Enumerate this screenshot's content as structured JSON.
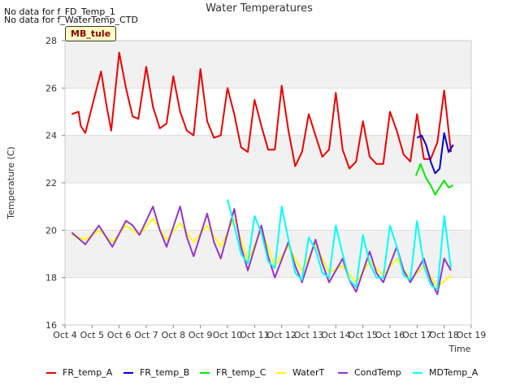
{
  "notices": [
    "No data for f_FD_Temp_1",
    "No data for f_WaterTemp_CTD"
  ],
  "site_label": "MB_tule",
  "chart_data": {
    "type": "line",
    "title": "Water Temperatures",
    "xlabel": "Time",
    "ylabel": "Temperature (C)",
    "ylim": [
      16,
      28
    ],
    "yticks": [
      16,
      18,
      20,
      22,
      24,
      26,
      28
    ],
    "xlim": [
      "Oct 4",
      "Oct 19"
    ],
    "xticks": [
      "Oct 4",
      "Oct 5",
      "Oct 6",
      "Oct 7",
      "Oct 8",
      "Oct 9",
      "Oct 10",
      "Oct 11",
      "Oct 12",
      "Oct 13",
      "Oct 14",
      "Oct 15",
      "Oct 16",
      "Oct 17",
      "Oct 18",
      "Oct 19"
    ],
    "grid": "horizontal bands",
    "legend_position": "bottom",
    "series": [
      {
        "name": "FR_temp_A",
        "color": "#ee0000",
        "x": [
          "Oct 4 06:00",
          "Oct 4 12:00",
          "Oct 4 14:00",
          "Oct 4 18:00",
          "Oct 5 02:00",
          "Oct 5 08:00",
          "Oct 5 13:00",
          "Oct 5 17:00",
          "Oct 6 00:00",
          "Oct 6 06:00",
          "Oct 6 12:00",
          "Oct 6 17:00",
          "Oct 7 00:00",
          "Oct 7 06:00",
          "Oct 7 12:00",
          "Oct 7 18:00",
          "Oct 8 00:00",
          "Oct 8 06:00",
          "Oct 8 12:00",
          "Oct 8 18:00",
          "Oct 9 00:00",
          "Oct 9 06:00",
          "Oct 9 12:00",
          "Oct 9 18:00",
          "Oct 10 00:00",
          "Oct 10 06:00",
          "Oct 10 12:00",
          "Oct 10 18:00",
          "Oct 11 00:00",
          "Oct 11 06:00",
          "Oct 11 12:00",
          "Oct 11 18:00",
          "Oct 12 00:00",
          "Oct 12 06:00",
          "Oct 12 12:00",
          "Oct 12 18:00",
          "Oct 13 00:00",
          "Oct 13 06:00",
          "Oct 13 12:00",
          "Oct 13 18:00",
          "Oct 14 00:00",
          "Oct 14 06:00",
          "Oct 14 12:00",
          "Oct 14 18:00",
          "Oct 15 00:00",
          "Oct 15 06:00",
          "Oct 15 12:00",
          "Oct 15 18:00",
          "Oct 16 00:00",
          "Oct 16 06:00",
          "Oct 16 12:00",
          "Oct 16 18:00",
          "Oct 17 00:00",
          "Oct 17 06:00",
          "Oct 17 12:00",
          "Oct 17 18:00",
          "Oct 18 00:00",
          "Oct 18 06:00"
        ],
        "y": [
          24.9,
          25.0,
          24.4,
          24.1,
          25.6,
          26.7,
          25.2,
          24.2,
          27.5,
          26.0,
          24.8,
          24.7,
          26.9,
          25.2,
          24.3,
          24.5,
          26.5,
          25.0,
          24.2,
          24.0,
          26.8,
          24.6,
          23.9,
          24.0,
          26.0,
          24.9,
          23.5,
          23.3,
          25.5,
          24.4,
          23.4,
          23.4,
          26.1,
          24.2,
          22.7,
          23.3,
          24.9,
          24.0,
          23.1,
          23.4,
          25.8,
          23.4,
          22.6,
          22.9,
          24.6,
          23.1,
          22.8,
          22.8,
          25.0,
          24.2,
          23.2,
          22.9,
          24.9,
          23.0,
          23.0,
          23.7,
          25.9,
          23.3
        ]
      },
      {
        "name": "FR_temp_B",
        "color": "#0000cc",
        "x": [
          "Oct 17 00:00",
          "Oct 17 04:00",
          "Oct 17 08:00",
          "Oct 17 12:00",
          "Oct 17 16:00",
          "Oct 17 20:00",
          "Oct 18 00:00",
          "Oct 18 04:00",
          "Oct 18 08:00"
        ],
        "y": [
          23.9,
          24.0,
          23.6,
          22.9,
          22.4,
          22.6,
          24.1,
          23.3,
          23.6
        ]
      },
      {
        "name": "FR_temp_C",
        "color": "#00ee00",
        "x": [
          "Oct 16 23:00",
          "Oct 17 03:00",
          "Oct 17 08:00",
          "Oct 17 12:00",
          "Oct 17 16:00",
          "Oct 17 20:00",
          "Oct 18 00:00",
          "Oct 18 04:00",
          "Oct 18 08:00"
        ],
        "y": [
          22.3,
          22.8,
          22.2,
          21.9,
          21.5,
          21.8,
          22.1,
          21.8,
          21.9
        ]
      },
      {
        "name": "WaterT",
        "color": "#ffff00",
        "x": [
          "Oct 4 06:00",
          "Oct 4 18:00",
          "Oct 5 06:00",
          "Oct 5 18:00",
          "Oct 6 06:00",
          "Oct 6 18:00",
          "Oct 7 06:00",
          "Oct 7 18:00",
          "Oct 8 06:00",
          "Oct 8 18:00",
          "Oct 9 06:00",
          "Oct 9 18:00",
          "Oct 10 06:00",
          "Oct 10 18:00",
          "Oct 11 06:00",
          "Oct 11 18:00",
          "Oct 12 06:00",
          "Oct 12 18:00",
          "Oct 13 06:00",
          "Oct 13 18:00",
          "Oct 14 06:00",
          "Oct 14 18:00",
          "Oct 15 06:00",
          "Oct 15 18:00",
          "Oct 16 06:00",
          "Oct 16 18:00",
          "Oct 17 06:00",
          "Oct 17 18:00",
          "Oct 18 06:00"
        ],
        "y": [
          19.8,
          19.6,
          20.0,
          19.5,
          20.2,
          19.8,
          20.5,
          19.6,
          20.3,
          19.5,
          20.2,
          19.3,
          20.5,
          18.7,
          20.0,
          18.5,
          19.3,
          18.3,
          19.4,
          18.2,
          18.5,
          17.8,
          18.7,
          18.1,
          18.8,
          17.9,
          18.5,
          17.6,
          18.1
        ]
      },
      {
        "name": "CondTemp",
        "color": "#9933cc",
        "x": [
          "Oct 4 06:00",
          "Oct 4 18:00",
          "Oct 5 06:00",
          "Oct 5 18:00",
          "Oct 6 06:00",
          "Oct 6 12:00",
          "Oct 6 18:00",
          "Oct 7 06:00",
          "Oct 7 12:00",
          "Oct 7 18:00",
          "Oct 8 06:00",
          "Oct 8 12:00",
          "Oct 8 18:00",
          "Oct 9 06:00",
          "Oct 9 12:00",
          "Oct 9 18:00",
          "Oct 10 06:00",
          "Oct 10 12:00",
          "Oct 10 18:00",
          "Oct 11 06:00",
          "Oct 11 12:00",
          "Oct 11 18:00",
          "Oct 12 06:00",
          "Oct 12 12:00",
          "Oct 12 18:00",
          "Oct 13 06:00",
          "Oct 13 12:00",
          "Oct 13 18:00",
          "Oct 14 06:00",
          "Oct 14 12:00",
          "Oct 14 18:00",
          "Oct 15 06:00",
          "Oct 15 12:00",
          "Oct 15 18:00",
          "Oct 16 06:00",
          "Oct 16 12:00",
          "Oct 16 18:00",
          "Oct 17 06:00",
          "Oct 17 12:00",
          "Oct 17 18:00",
          "Oct 18 00:00",
          "Oct 18 06:00"
        ],
        "y": [
          19.9,
          19.4,
          20.2,
          19.3,
          20.4,
          20.2,
          19.8,
          21.0,
          20.0,
          19.3,
          21.0,
          19.7,
          18.9,
          20.7,
          19.5,
          18.8,
          20.9,
          19.3,
          18.3,
          20.2,
          18.9,
          18.0,
          19.5,
          18.5,
          17.8,
          19.6,
          18.6,
          17.8,
          18.8,
          17.9,
          17.4,
          19.1,
          18.2,
          17.8,
          19.3,
          18.3,
          17.8,
          18.8,
          17.9,
          17.3,
          18.8,
          18.3
        ]
      },
      {
        "name": "MDTemp_A",
        "color": "#00ffff",
        "x": [
          "Oct 10 00:00",
          "Oct 10 06:00",
          "Oct 10 12:00",
          "Oct 10 18:00",
          "Oct 11 00:00",
          "Oct 11 06:00",
          "Oct 11 12:00",
          "Oct 11 18:00",
          "Oct 12 00:00",
          "Oct 12 06:00",
          "Oct 12 12:00",
          "Oct 12 18:00",
          "Oct 13 00:00",
          "Oct 13 06:00",
          "Oct 13 12:00",
          "Oct 13 18:00",
          "Oct 14 00:00",
          "Oct 14 06:00",
          "Oct 14 12:00",
          "Oct 14 18:00",
          "Oct 15 00:00",
          "Oct 15 06:00",
          "Oct 15 12:00",
          "Oct 15 18:00",
          "Oct 16 00:00",
          "Oct 16 06:00",
          "Oct 16 12:00",
          "Oct 16 18:00",
          "Oct 17 00:00",
          "Oct 17 06:00",
          "Oct 17 12:00",
          "Oct 17 18:00",
          "Oct 18 00:00",
          "Oct 18 06:00"
        ],
        "y": [
          21.3,
          20.2,
          19.0,
          18.6,
          20.6,
          19.9,
          18.7,
          18.4,
          21.0,
          19.6,
          18.2,
          17.9,
          19.7,
          19.2,
          18.2,
          18.0,
          20.2,
          19.0,
          17.9,
          17.6,
          19.8,
          18.6,
          18.0,
          18.0,
          20.2,
          19.3,
          18.1,
          17.9,
          20.4,
          18.5,
          17.7,
          17.5,
          20.6,
          18.4
        ]
      }
    ]
  }
}
